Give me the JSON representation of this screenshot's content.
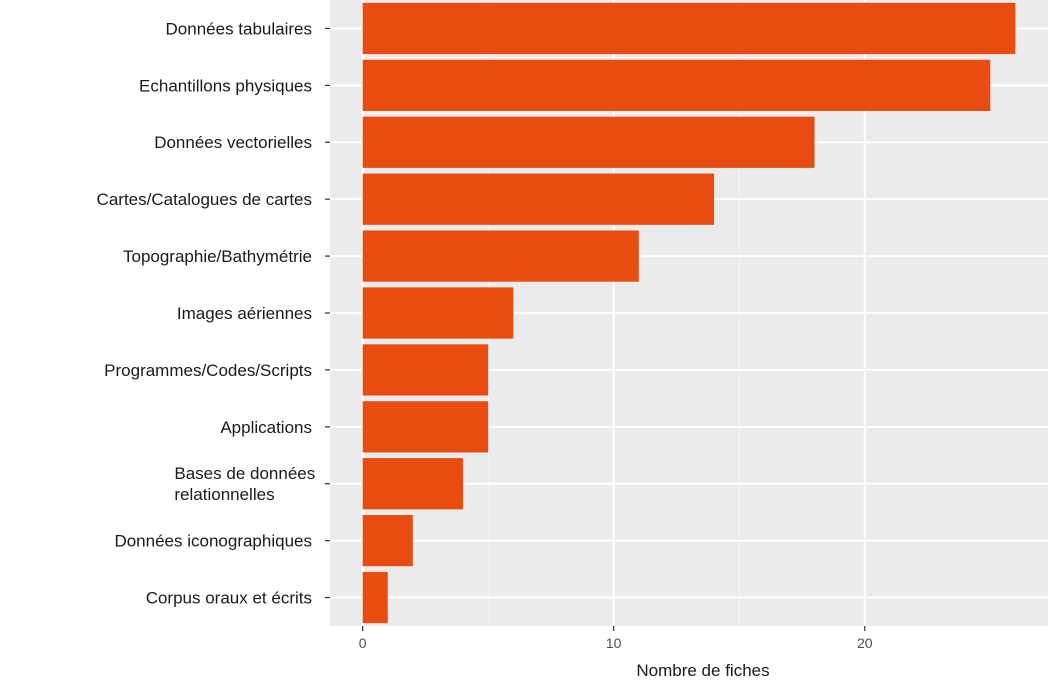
{
  "chart_data": {
    "type": "bar",
    "orientation": "horizontal",
    "categories": [
      "Données tabulaires",
      "Echantillons physiques",
      "Données vectorielles",
      "Cartes/Catalogues de cartes",
      "Topographie/Bathymétrie",
      "Images aériennes",
      "Programmes/Codes/Scripts",
      "Applications",
      "Bases de données relationnelles",
      "Données iconographiques",
      "Corpus oraux et écrits"
    ],
    "category_lines": [
      [
        "Données tabulaires"
      ],
      [
        "Echantillons physiques"
      ],
      [
        "Données vectorielles"
      ],
      [
        "Cartes/Catalogues de cartes"
      ],
      [
        "Topographie/Bathymétrie"
      ],
      [
        "Images aériennes"
      ],
      [
        "Programmes/Codes/Scripts"
      ],
      [
        "Applications"
      ],
      [
        "Bases de données",
        "relationnelles"
      ],
      [
        "Données iconographiques"
      ],
      [
        "Corpus oraux et écrits"
      ]
    ],
    "values": [
      26,
      25,
      18,
      14,
      11,
      6,
      5,
      5,
      4,
      2,
      1
    ],
    "xlabel": "Nombre de fiches",
    "ylabel": "",
    "xlim": [
      -1.3,
      27.3
    ],
    "xticks": [
      0,
      10,
      20
    ],
    "xtick_labels": [
      "0",
      "10",
      "20"
    ],
    "grid": true,
    "legend": "none",
    "colors": {
      "bar": "#e84c10",
      "panel": "#ebebeb",
      "grid_major": "#ffffff",
      "grid_minor": "#f5f5f5",
      "axis_ticks": "#333333"
    }
  }
}
